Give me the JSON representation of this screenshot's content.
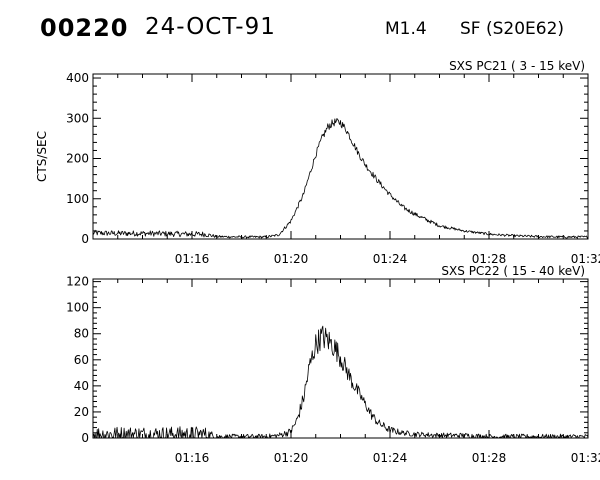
{
  "header": {
    "event_number": "00220",
    "date": "24-OCT-91",
    "goes_class": "M1.4",
    "flare_info": "SF (S20E62)"
  },
  "chart_data": [
    {
      "type": "line",
      "title": "SXS PC21  (  3 - 15 keV)",
      "ylabel": "CTS/SEC",
      "xlabel": "",
      "x_tick_labels": [
        "01:16",
        "01:20",
        "01:24",
        "01:28",
        "01:32"
      ],
      "xlim": [
        "01:12",
        "01:32"
      ],
      "ylim": [
        0,
        410
      ],
      "y_ticks": [
        0,
        100,
        200,
        300,
        400
      ],
      "grid": false,
      "series": [
        {
          "x": [
            "01:12:00",
            "01:13:00",
            "01:14:00",
            "01:15:00",
            "01:16:00",
            "01:16:30",
            "01:17:00",
            "01:18:00",
            "01:19:00",
            "01:19:30",
            "01:20:00",
            "01:20:30",
            "01:20:45",
            "01:21:00",
            "01:21:15",
            "01:21:30",
            "01:21:45",
            "01:22:00",
            "01:22:15",
            "01:22:30",
            "01:22:45",
            "01:23:00",
            "01:23:30",
            "01:24:00",
            "01:24:30",
            "01:25:00",
            "01:25:30",
            "01:26:00",
            "01:27:00",
            "01:28:00",
            "01:29:00",
            "01:30:00",
            "01:31:00",
            "01:32:00"
          ],
          "values": [
            15,
            14,
            14,
            13,
            12,
            12,
            6,
            5,
            5,
            10,
            45,
            110,
            160,
            210,
            250,
            280,
            290,
            290,
            270,
            240,
            210,
            185,
            145,
            110,
            80,
            62,
            47,
            33,
            20,
            12,
            8,
            6,
            5,
            5
          ],
          "noise": [
            7,
            7,
            7,
            7,
            7,
            7,
            3,
            3,
            3,
            3,
            5,
            6,
            7,
            8,
            9,
            10,
            10,
            10,
            9,
            9,
            8,
            8,
            7,
            6,
            6,
            5,
            5,
            4,
            3,
            3,
            3,
            3,
            3,
            3
          ]
        }
      ]
    },
    {
      "type": "line",
      "title": "SXS PC22  ( 15 - 40 keV)",
      "ylabel": "",
      "xlabel": "",
      "x_tick_labels": [
        "01:16",
        "01:20",
        "01:24",
        "01:28",
        "01:32"
      ],
      "xlim": [
        "01:12",
        "01:32"
      ],
      "ylim": [
        0,
        122
      ],
      "y_ticks": [
        0,
        20,
        40,
        60,
        80,
        100,
        120
      ],
      "grid": false,
      "series": [
        {
          "x": [
            "01:12:00",
            "01:13:00",
            "01:14:00",
            "01:15:00",
            "01:16:00",
            "01:16:30",
            "01:17:00",
            "01:18:00",
            "01:19:00",
            "01:19:30",
            "01:20:00",
            "01:20:15",
            "01:20:30",
            "01:20:45",
            "01:21:00",
            "01:21:15",
            "01:21:30",
            "01:21:45",
            "01:22:00",
            "01:22:15",
            "01:22:30",
            "01:22:45",
            "01:23:00",
            "01:23:15",
            "01:23:30",
            "01:24:00",
            "01:24:30",
            "01:25:00",
            "01:26:00",
            "01:27:00",
            "01:28:00",
            "01:30:00",
            "01:32:00"
          ],
          "values": [
            3,
            3,
            3,
            3,
            3,
            3,
            1,
            1,
            1,
            2,
            5,
            14,
            30,
            55,
            72,
            78,
            75,
            70,
            62,
            52,
            42,
            34,
            26,
            18,
            12,
            6,
            4,
            3,
            2,
            2,
            1,
            1,
            1
          ],
          "noise": [
            6,
            6,
            6,
            6,
            6,
            6,
            2,
            2,
            2,
            2,
            3,
            4,
            6,
            8,
            9,
            10,
            10,
            9,
            8,
            7,
            6,
            5,
            4,
            4,
            3,
            3,
            2,
            2,
            2,
            2,
            2,
            2,
            2
          ]
        }
      ]
    }
  ]
}
